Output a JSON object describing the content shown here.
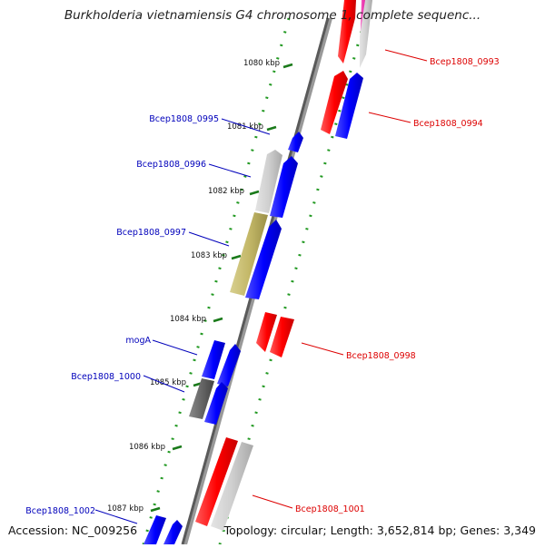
{
  "title": "Burkholderia vietnamiensis G4 chromosome 1, complete sequenc...",
  "accession": "Accession: NC_009256",
  "summary": "Topology: circular; Length: 3,652,814 bp; Genes: 3,349",
  "ticks": [
    "1080 kbp",
    "1081 kbp",
    "1082 kbp",
    "1083 kbp",
    "1084 kbp",
    "1085 kbp",
    "1086 kbp",
    "1087 kbp"
  ],
  "genes": [
    {
      "label": "Bcep1808_0993",
      "color": "#dd0000"
    },
    {
      "label": "Bcep1808_0994",
      "color": "#dd0000"
    },
    {
      "label": "Bcep1808_0995",
      "color": "#0000bb"
    },
    {
      "label": "Bcep1808_0996",
      "color": "#0000bb"
    },
    {
      "label": "Bcep1808_0997",
      "color": "#0000bb"
    },
    {
      "label": "mogA",
      "color": "#0000bb"
    },
    {
      "label": "Bcep1808_1000",
      "color": "#0000bb"
    },
    {
      "label": "Bcep1808_0998",
      "color": "#dd0000"
    },
    {
      "label": "Bcep1808_1001",
      "color": "#dd0000"
    },
    {
      "label": "Bcep1808_1002",
      "color": "#0000bb"
    }
  ]
}
